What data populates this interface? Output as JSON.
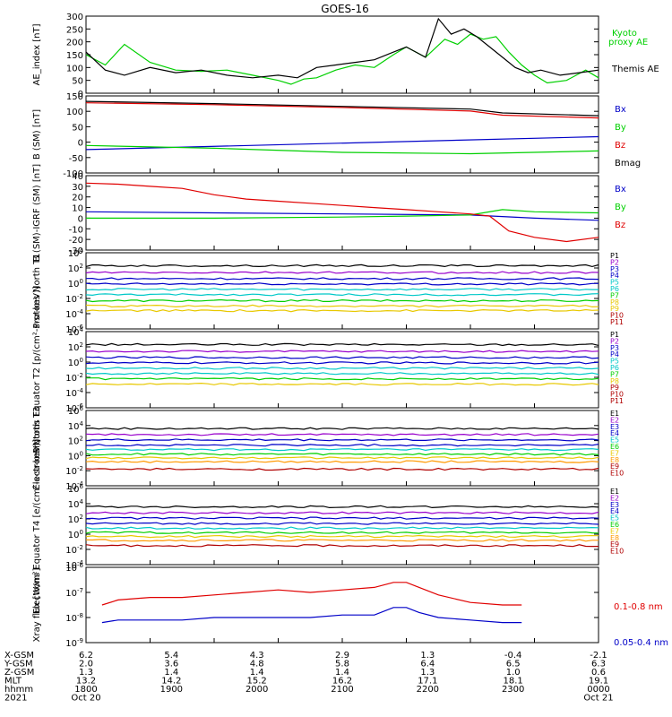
{
  "title": "GOES-16",
  "colors": {
    "axis": "#000000",
    "red": "#e00000",
    "green": "#00d000",
    "blue": "#0000c8",
    "cyan": "#00c8c8",
    "yellow": "#e8c800",
    "orange": "#ff9900",
    "darkred": "#b00000",
    "purple": "#9900cc"
  },
  "chart_data": [
    {
      "type": "line",
      "id": "ae",
      "ylabel": "AE_index [nT]",
      "ylim": [
        0,
        300
      ],
      "ticks": [
        "300",
        "250",
        "200",
        "150",
        "100",
        "50",
        "0"
      ],
      "series": [
        {
          "name": "Kyoto proxy AE",
          "color": "#00d000",
          "x": [
            0,
            0.3,
            0.6,
            1.0,
            1.4,
            1.8,
            2.2,
            2.6,
            3.0,
            3.2,
            3.4,
            3.6,
            3.9,
            4.2,
            4.5,
            4.8,
            5.0,
            5.3,
            5.6,
            5.8,
            6.0,
            6.2,
            6.4,
            6.6,
            6.8,
            7.0,
            7.2,
            7.5,
            7.8,
            8.0
          ],
          "y": [
            150,
            110,
            190,
            120,
            90,
            85,
            90,
            70,
            50,
            35,
            55,
            60,
            90,
            110,
            100,
            150,
            180,
            140,
            210,
            190,
            230,
            210,
            220,
            160,
            110,
            70,
            40,
            50,
            90,
            60
          ]
        },
        {
          "name": "Themis AE",
          "color": "#000000",
          "x": [
            0,
            0.3,
            0.6,
            1.0,
            1.4,
            1.8,
            2.2,
            2.6,
            3.0,
            3.3,
            3.6,
            3.9,
            4.2,
            4.5,
            4.8,
            5.0,
            5.3,
            5.5,
            5.7,
            5.9,
            6.1,
            6.3,
            6.5,
            6.7,
            6.9,
            7.1,
            7.4,
            7.7,
            8.0
          ],
          "y": [
            160,
            90,
            70,
            100,
            80,
            90,
            70,
            60,
            70,
            60,
            100,
            110,
            120,
            130,
            160,
            180,
            140,
            290,
            230,
            250,
            220,
            180,
            140,
            100,
            80,
            90,
            70,
            80,
            90
          ]
        }
      ],
      "labels": [
        "Kyoto",
        "proxy AE",
        "Themis AE"
      ]
    },
    {
      "type": "line",
      "id": "bsm",
      "ylabel": "B (SM) [nT]",
      "ylim": [
        -120,
        160
      ],
      "ticks": [
        "150",
        "100",
        "50",
        "0",
        "-50",
        "-100"
      ],
      "series": [
        {
          "name": "Bx",
          "color": "#0000c8",
          "x": [
            0,
            8
          ],
          "y": [
            -35,
            12
          ]
        },
        {
          "name": "By",
          "color": "#00d000",
          "x": [
            0,
            2,
            4,
            6,
            8
          ],
          "y": [
            -20,
            -30,
            -45,
            -50,
            -40
          ]
        },
        {
          "name": "Bz",
          "color": "#e00000",
          "x": [
            0,
            2,
            4,
            6,
            6.5,
            8
          ],
          "y": [
            135,
            128,
            118,
            105,
            90,
            80
          ]
        },
        {
          "name": "Bmag",
          "color": "#000000",
          "x": [
            0,
            2,
            4,
            6,
            6.5,
            8
          ],
          "y": [
            140,
            132,
            122,
            112,
            98,
            88
          ]
        }
      ],
      "labels": [
        "Bx",
        "By",
        "Bz",
        "Bmag"
      ]
    },
    {
      "type": "line",
      "id": "bigrf",
      "ylabel": "B (SM)-IGRF (SM) [nT]",
      "ylim": [
        -30,
        40
      ],
      "ticks": [
        "40",
        "30",
        "20",
        "10",
        "0",
        "-10",
        "-20",
        "-30"
      ],
      "series": [
        {
          "name": "Bx",
          "color": "#0000c8",
          "x": [
            0,
            2,
            4,
            6,
            7,
            8
          ],
          "y": [
            6,
            5,
            4,
            3,
            0,
            -2
          ]
        },
        {
          "name": "By",
          "color": "#00d000",
          "x": [
            0,
            2,
            4,
            5,
            6,
            6.5,
            7,
            8
          ],
          "y": [
            0,
            0,
            1,
            2,
            3,
            8,
            6,
            5
          ]
        },
        {
          "name": "Bz",
          "color": "#e00000",
          "x": [
            0,
            0.5,
            1,
            1.5,
            2,
            2.5,
            3,
            3.5,
            4,
            4.5,
            5,
            5.5,
            6,
            6.3,
            6.6,
            7,
            7.5,
            8
          ],
          "y": [
            33,
            32,
            30,
            28,
            22,
            18,
            16,
            14,
            12,
            10,
            8,
            6,
            4,
            2,
            -12,
            -18,
            -22,
            -18
          ]
        }
      ],
      "labels": [
        "Bx",
        "By",
        "Bz"
      ]
    },
    {
      "type": "line",
      "id": "pnorth",
      "ylabel": "Protons North T1",
      "log": true,
      "ylim": [
        -6,
        4
      ],
      "ticks": [
        "10^4",
        "10^2",
        "10^0",
        "10^-2",
        "10^-4",
        "10^-6"
      ],
      "levels": [
        2.3,
        1.4,
        0.6,
        -0.1,
        -0.8,
        -1.5,
        -2.3,
        -3.0,
        -3.6
      ],
      "colors": [
        "#000000",
        "#9900cc",
        "#0000c8",
        "#0000c8",
        "#00c8c8",
        "#00c8c8",
        "#00d000",
        "#e8c800",
        "#e8c800"
      ],
      "labels": [
        "P1",
        "P2",
        "P3",
        "P4",
        "P5",
        "P6",
        "P7",
        "P8",
        "P9",
        "P10",
        "P11"
      ]
    },
    {
      "type": "line",
      "id": "peq",
      "ylabel": "Protons Equator T2 [p/(cm²-s-sr-keV)]",
      "log": true,
      "ylim": [
        -6,
        4
      ],
      "ticks": [
        "10^4",
        "10^2",
        "10^0",
        "10^-2",
        "10^-4",
        "10^-6"
      ],
      "levels": [
        2.3,
        1.4,
        0.6,
        -0.1,
        -0.8,
        -1.5,
        -2.2,
        -2.9
      ],
      "colors": [
        "#000000",
        "#9900cc",
        "#0000c8",
        "#0000c8",
        "#00c8c8",
        "#00c8c8",
        "#00d000",
        "#e8c800"
      ],
      "labels": [
        "P1",
        "P2",
        "P3",
        "P4",
        "P5",
        "P6",
        "P7",
        "P8",
        "P9",
        "P10",
        "P11"
      ]
    },
    {
      "type": "line",
      "id": "enorth",
      "ylabel": "Electrons North T3",
      "log": true,
      "ylim": [
        -4,
        6
      ],
      "ticks": [
        "10^6",
        "10^4",
        "10^2",
        "10^0",
        "10^-2",
        "10^-4"
      ],
      "levels": [
        3.6,
        2.8,
        2.1,
        1.4,
        0.8,
        0.2,
        -0.3,
        -0.8,
        -1.8
      ],
      "colors": [
        "#000000",
        "#9900cc",
        "#0000c8",
        "#0000c8",
        "#00c8c8",
        "#00d000",
        "#e8c800",
        "#ff9900",
        "#b00000"
      ],
      "labels": [
        "E1",
        "E2",
        "E3",
        "E4",
        "E5",
        "E6",
        "E7",
        "E8",
        "E9",
        "E10"
      ]
    },
    {
      "type": "line",
      "id": "eeq",
      "ylabel": "Electrons Equator T4 [e/(cm²-s-sr-keV)]",
      "log": true,
      "ylim": [
        -4,
        6
      ],
      "ticks": [
        "10^6",
        "10^4",
        "10^2",
        "10^0",
        "10^-2",
        "10^-4"
      ],
      "levels": [
        3.6,
        2.8,
        2.1,
        1.4,
        0.8,
        0.2,
        -0.3,
        -0.8,
        -1.5
      ],
      "colors": [
        "#000000",
        "#9900cc",
        "#0000c8",
        "#0000c8",
        "#00c8c8",
        "#00d000",
        "#e8c800",
        "#ff9900",
        "#b00000"
      ],
      "labels": [
        "E1",
        "E2",
        "E3",
        "E4",
        "E5",
        "E6",
        "E7",
        "E8",
        "E9",
        "E10"
      ]
    },
    {
      "type": "line",
      "id": "xray",
      "ylabel": "Xray flux [W/m²]",
      "log": true,
      "ylim": [
        -9,
        -6
      ],
      "ticks": [
        "10^-6",
        "10^-7",
        "10^-8",
        "10^-9"
      ],
      "series": [
        {
          "name": "0.1-0.8 nm",
          "color": "#e00000",
          "x": [
            0.25,
            0.5,
            1,
            1.5,
            2,
            2.5,
            3,
            3.5,
            4,
            4.5,
            4.8,
            5,
            5.2,
            5.5,
            6,
            6.5,
            6.8
          ],
          "y": [
            -7.5,
            -7.3,
            -7.2,
            -7.2,
            -7.1,
            -7.0,
            -6.9,
            -7.0,
            -6.9,
            -6.8,
            -6.6,
            -6.6,
            -6.8,
            -7.1,
            -7.4,
            -7.5,
            -7.5
          ]
        },
        {
          "name": "0.05-0.4 nm",
          "color": "#0000c8",
          "x": [
            0.25,
            0.5,
            1,
            1.5,
            2,
            2.5,
            3,
            3.5,
            4,
            4.5,
            4.8,
            5,
            5.2,
            5.5,
            6,
            6.5,
            6.8
          ],
          "y": [
            -8.2,
            -8.1,
            -8.1,
            -8.1,
            -8.0,
            -8.0,
            -8.0,
            -8.0,
            -7.9,
            -7.9,
            -7.6,
            -7.6,
            -7.8,
            -8.0,
            -8.1,
            -8.2,
            -8.2
          ]
        }
      ],
      "labels": [
        "0.1-0.8 nm",
        "0.05-0.4 nm"
      ]
    }
  ],
  "xaxis": {
    "rows": [
      "X-GSM",
      "Y-GSM",
      "Z-GSM",
      "MLT",
      "hhmm",
      "2021"
    ],
    "columns": [
      [
        "6.2",
        "2.0",
        "1.3",
        "13.2",
        "1800",
        "Oct 20"
      ],
      [
        "5.4",
        "3.6",
        "1.4",
        "14.2",
        "1900",
        ""
      ],
      [
        "4.3",
        "4.8",
        "1.4",
        "15.2",
        "2000",
        ""
      ],
      [
        "2.9",
        "5.8",
        "1.4",
        "16.2",
        "2100",
        ""
      ],
      [
        "1.3",
        "6.4",
        "1.3",
        "17.1",
        "2200",
        ""
      ],
      [
        "-0.4",
        "6.5",
        "1.0",
        "18.1",
        "2300",
        ""
      ],
      [
        "-2.1",
        "6.3",
        "0.6",
        "19.1",
        "0000",
        "Oct 21"
      ]
    ]
  }
}
